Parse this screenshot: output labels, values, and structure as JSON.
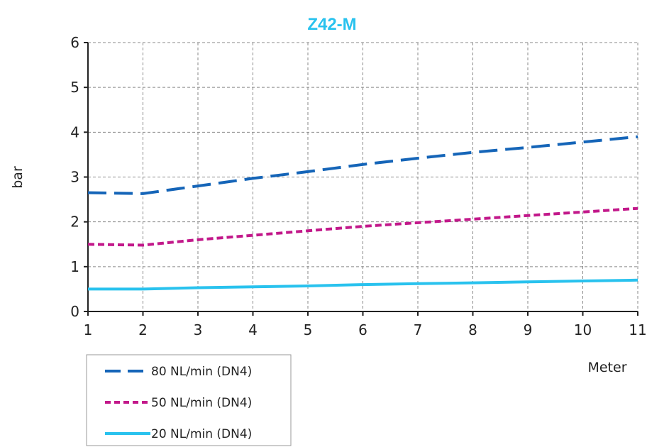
{
  "chart_data": {
    "type": "line",
    "title": "Z42-M",
    "xlabel": "Meter",
    "ylabel": "bar",
    "xlim": [
      1,
      11
    ],
    "ylim": [
      0,
      6
    ],
    "x_ticks": [
      1,
      2,
      3,
      4,
      5,
      6,
      7,
      8,
      9,
      10,
      11
    ],
    "y_ticks": [
      0,
      1,
      2,
      3,
      4,
      5,
      6
    ],
    "grid": true,
    "legend_position": "bottom-left",
    "colors": {
      "title": "#29c2ee",
      "grid": "#888888",
      "axis": "#222222"
    },
    "series": [
      {
        "name": "80 NL/min (DN4)",
        "color": "#1565b8",
        "style": "long-dash",
        "x": [
          1,
          2,
          3,
          4,
          5,
          6,
          7,
          8,
          9,
          10,
          11
        ],
        "y": [
          2.65,
          2.63,
          2.8,
          2.97,
          3.12,
          3.28,
          3.42,
          3.55,
          3.66,
          3.78,
          3.9
        ]
      },
      {
        "name": "50 NL/min (DN4)",
        "color": "#c2188a",
        "style": "short-dash",
        "x": [
          1,
          2,
          3,
          4,
          5,
          6,
          7,
          8,
          9,
          10,
          11
        ],
        "y": [
          1.5,
          1.48,
          1.6,
          1.7,
          1.8,
          1.9,
          1.98,
          2.06,
          2.14,
          2.22,
          2.3
        ]
      },
      {
        "name": "20 NL/min (DN4)",
        "color": "#29c2ee",
        "style": "solid",
        "x": [
          1,
          2,
          3,
          4,
          5,
          6,
          7,
          8,
          9,
          10,
          11
        ],
        "y": [
          0.5,
          0.5,
          0.53,
          0.55,
          0.57,
          0.6,
          0.62,
          0.64,
          0.66,
          0.68,
          0.7
        ]
      }
    ]
  }
}
